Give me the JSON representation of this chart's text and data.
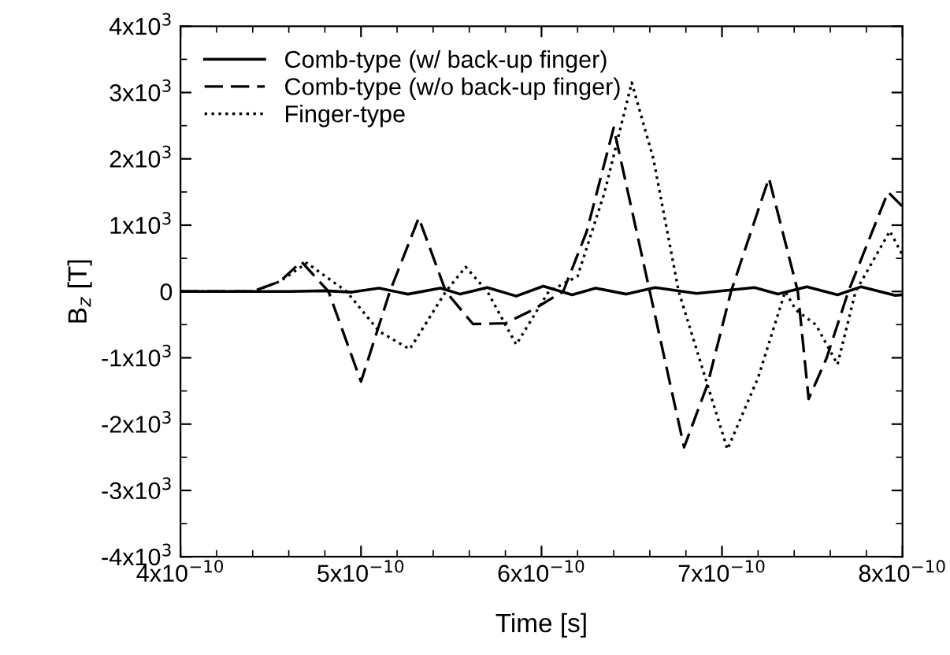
{
  "chart_data": {
    "type": "line",
    "xlabel": "Time [s]",
    "ylabel": "B$_{z}$ [T]",
    "xlim": [
      4e-10,
      8e-10
    ],
    "ylim": [
      -4000,
      4000
    ],
    "xticks": [
      {
        "value": 4e-10,
        "label": "4x10$^{−10}$"
      },
      {
        "value": 5e-10,
        "label": "5x10$^{−10}$"
      },
      {
        "value": 6e-10,
        "label": "6x10$^{−10}$"
      },
      {
        "value": 7e-10,
        "label": "7x10$^{−10}$"
      },
      {
        "value": 8e-10,
        "label": "8x10$^{−10}$"
      }
    ],
    "yticks": [
      {
        "value": -4000,
        "label": "-4x10$^{3}$"
      },
      {
        "value": -3000,
        "label": "-3x10$^{3}$"
      },
      {
        "value": -2000,
        "label": "-2x10$^{3}$"
      },
      {
        "value": -1000,
        "label": "-1x10$^{3}$"
      },
      0,
      {
        "value": 1000,
        "label": "1x10$^{3}$"
      },
      {
        "value": 2000,
        "label": "2x10$^{3}$"
      },
      {
        "value": 3000,
        "label": "3x10$^{3}$"
      },
      {
        "value": 4000,
        "label": "4x10$^{3}$"
      }
    ],
    "grid": false,
    "legend": "top left",
    "marker": "none",
    "series": [
      {
        "name": "Comb-type (w/ back-up finger)",
        "color": "#000000",
        "line_style": "solid",
        "x": [
          4e-10,
          4.6e-10,
          4.8e-10,
          4.95e-10,
          5.1e-10,
          5.26e-10,
          5.44e-10,
          5.55e-10,
          5.7e-10,
          5.86e-10,
          6.01e-10,
          6.17e-10,
          6.3e-10,
          6.47e-10,
          6.63e-10,
          6.86e-10,
          7.18e-10,
          7.31e-10,
          7.47e-10,
          7.64e-10,
          7.77e-10,
          7.96e-10,
          8e-10
        ],
        "values": [
          0,
          0,
          10,
          -10,
          50,
          -40,
          50,
          -40,
          60,
          -70,
          80,
          -50,
          50,
          -40,
          60,
          -30,
          60,
          -40,
          70,
          -50,
          70,
          -60,
          -50
        ]
      },
      {
        "name": "Comb-type (w/o back-up finger)",
        "color": "#000000",
        "line_style": "dashed",
        "x": [
          4e-10,
          4.4e-10,
          4.55e-10,
          4.67e-10,
          4.82e-10,
          5e-10,
          5.16e-10,
          5.32e-10,
          5.47e-10,
          5.62e-10,
          5.8e-10,
          5.95e-10,
          6.12e-10,
          6.25e-10,
          6.4e-10,
          6.6e-10,
          6.79e-10,
          6.92e-10,
          7.05e-10,
          7.26e-10,
          7.42e-10,
          7.48e-10,
          7.58e-10,
          7.7e-10,
          7.92e-10,
          8e-10
        ],
        "values": [
          0,
          0,
          150,
          450,
          0,
          -1360,
          0,
          1110,
          0,
          -490,
          -480,
          -280,
          0,
          900,
          2470,
          0,
          -2350,
          -1400,
          0,
          1710,
          0,
          -1620,
          -1000,
          0,
          1500,
          1280
        ]
      },
      {
        "name": "Finger-type",
        "color": "#000000",
        "line_style": "dotted",
        "x": [
          4e-10,
          4.4e-10,
          4.55e-10,
          4.7e-10,
          4.92e-10,
          5.1e-10,
          5.27e-10,
          5.47e-10,
          5.58e-10,
          5.7e-10,
          5.86e-10,
          6.04e-10,
          6.2e-10,
          6.35e-10,
          6.5e-10,
          6.62e-10,
          6.76e-10,
          7.03e-10,
          7.2e-10,
          7.35e-10,
          7.41e-10,
          7.52e-10,
          7.64e-10,
          7.74e-10,
          7.93e-10,
          8e-10
        ],
        "values": [
          0,
          0,
          150,
          430,
          0,
          -600,
          -870,
          0,
          370,
          0,
          -800,
          0,
          230,
          1500,
          3150,
          2000,
          0,
          -2380,
          -1300,
          0,
          -280,
          -500,
          -1100,
          0,
          910,
          550
        ]
      }
    ]
  }
}
